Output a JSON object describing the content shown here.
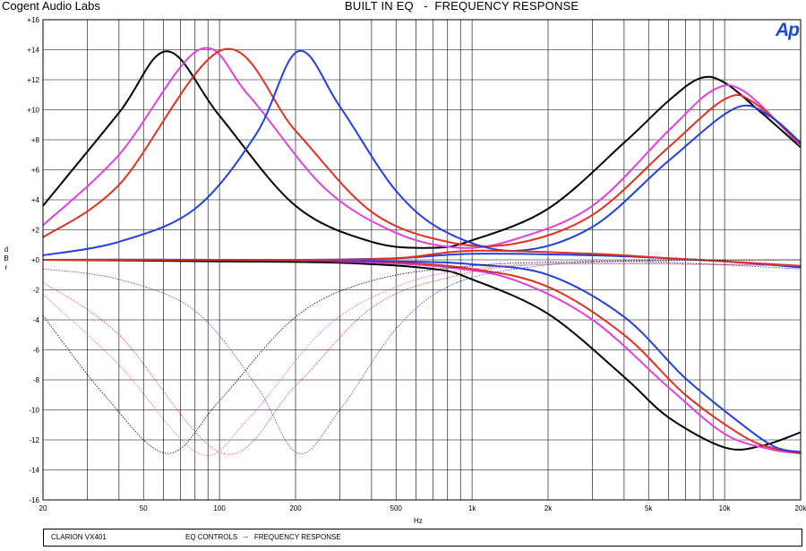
{
  "header": {
    "company": "Cogent Audio Labs",
    "title": "BUILT IN EQ   -  FREQUENCY RESPONSE",
    "logo_text": "Ap",
    "logo_color": "#1b4bd6"
  },
  "footer": {
    "model": "CLARION VX401",
    "description": "EQ CONTROLS   --   FREQUENCY RESPONSE"
  },
  "chart_data": {
    "type": "line",
    "xscale": "log",
    "xlim": [
      20,
      20000
    ],
    "ylim": [
      -16,
      16
    ],
    "grid": true,
    "xlabel": "Hz",
    "ylabel": "dBr",
    "y_ticks": [
      "+16",
      "+14",
      "+12",
      "+10",
      "+8",
      "+6",
      "+4",
      "+2",
      "+0",
      "-2",
      "-4",
      "-6",
      "-8",
      "-10",
      "-12",
      "-14",
      "-16"
    ],
    "x_ticks": [
      {
        "value": 20,
        "label": "20"
      },
      {
        "value": 50,
        "label": "50"
      },
      {
        "value": 100,
        "label": "100"
      },
      {
        "value": 200,
        "label": "200"
      },
      {
        "value": 500,
        "label": "500"
      },
      {
        "value": 1000,
        "label": "1k"
      },
      {
        "value": 2000,
        "label": "2k"
      },
      {
        "value": 5000,
        "label": "5k"
      },
      {
        "value": 10000,
        "label": "10k"
      },
      {
        "value": 20000,
        "label": "20k"
      }
    ],
    "series": [
      {
        "color": "#000000",
        "style": "solid",
        "x": [
          20,
          40,
          62,
          100,
          200,
          400,
          700,
          1000,
          2000,
          4000,
          6000,
          8000,
          10000,
          14000,
          20000
        ],
        "y": [
          3.6,
          9.8,
          13.9,
          9.6,
          3.6,
          1.2,
          0.8,
          1.3,
          3.4,
          7.8,
          10.6,
          12.1,
          11.8,
          9.8,
          7.5
        ]
      },
      {
        "color": "#e040e0",
        "style": "solid",
        "x": [
          20,
          40,
          83,
          130,
          260,
          500,
          900,
          1500,
          3000,
          6000,
          9000,
          12000,
          20000
        ],
        "y": [
          2.3,
          7.0,
          14.0,
          11.0,
          4.8,
          1.8,
          0.8,
          1.4,
          3.6,
          8.6,
          11.3,
          11.2,
          7.6
        ]
      },
      {
        "color": "#e03020",
        "style": "solid",
        "x": [
          20,
          40,
          103,
          200,
          400,
          800,
          1500,
          3000,
          6000,
          10000,
          13000,
          20000
        ],
        "y": [
          1.5,
          5.0,
          14.0,
          8.6,
          3.2,
          1.2,
          1.1,
          3.0,
          7.5,
          10.7,
          10.5,
          7.7
        ]
      },
      {
        "color": "#2040e0",
        "style": "solid",
        "x": [
          20,
          40,
          80,
          140,
          205,
          300,
          500,
          800,
          1500,
          3000,
          6000,
          11000,
          15000,
          20000
        ],
        "y": [
          0.3,
          1.2,
          3.4,
          8.4,
          13.9,
          10.2,
          4.6,
          1.8,
          0.6,
          2.2,
          6.6,
          10.1,
          9.6,
          7.8
        ]
      },
      {
        "color": "#000000",
        "style": "solid",
        "x": [
          20,
          100,
          300,
          700,
          1000,
          2000,
          4000,
          6000,
          10000,
          14000,
          20000
        ],
        "y": [
          0,
          -0.1,
          -0.2,
          -0.6,
          -1.3,
          -3.6,
          -7.8,
          -10.5,
          -12.5,
          -12.4,
          -11.5
        ]
      },
      {
        "color": "#e040e0",
        "style": "solid",
        "x": [
          20,
          100,
          300,
          800,
          1500,
          3000,
          6000,
          10000,
          15000,
          20000
        ],
        "y": [
          0,
          0,
          -0.1,
          -0.5,
          -1.4,
          -4.0,
          -8.5,
          -11.6,
          -12.6,
          -12.9
        ]
      },
      {
        "color": "#e03020",
        "style": "solid",
        "x": [
          20,
          100,
          400,
          1000,
          2000,
          4000,
          7000,
          12000,
          16000,
          20000
        ],
        "y": [
          0,
          0,
          -0.1,
          -0.6,
          -1.8,
          -5.0,
          -9.0,
          -11.8,
          -12.6,
          -12.9
        ]
      },
      {
        "color": "#2040e0",
        "style": "solid",
        "x": [
          20,
          100,
          500,
          1000,
          2000,
          4000,
          7000,
          12000,
          16000,
          20000
        ],
        "y": [
          0,
          0,
          -0.1,
          -0.3,
          -1.0,
          -3.8,
          -7.9,
          -11.1,
          -12.5,
          -12.8
        ]
      },
      {
        "color": "#2040e0",
        "style": "solid",
        "x": [
          20,
          200,
          500,
          1000,
          3000,
          6000,
          10000,
          20000
        ],
        "y": [
          0,
          0,
          0.1,
          0.4,
          0.3,
          0.1,
          -0.1,
          -0.5
        ]
      },
      {
        "color": "#e03020",
        "style": "solid",
        "x": [
          20,
          200,
          500,
          1000,
          3000,
          6000,
          10000,
          20000
        ],
        "y": [
          0,
          0,
          0.1,
          0.6,
          0.4,
          0.1,
          -0.1,
          -0.4
        ]
      },
      {
        "color": "#000000",
        "style": "dotted",
        "x": [
          20,
          35,
          62,
          100,
          200,
          400,
          1000,
          3000,
          20000
        ],
        "y": [
          -3.7,
          -9.0,
          -12.9,
          -9.4,
          -3.8,
          -1.4,
          -0.4,
          -0.1,
          0
        ]
      },
      {
        "color": "#e040e0",
        "style": "dotted",
        "x": [
          20,
          40,
          83,
          130,
          260,
          500,
          1000,
          3000,
          20000
        ],
        "y": [
          -2.3,
          -7.0,
          -12.9,
          -10.6,
          -4.6,
          -1.8,
          -0.6,
          -0.2,
          -0.4
        ]
      },
      {
        "color": "#e03020",
        "style": "dotted",
        "x": [
          20,
          40,
          103,
          200,
          400,
          800,
          2000,
          20000
        ],
        "y": [
          -1.5,
          -5.0,
          -12.9,
          -8.4,
          -3.2,
          -1.2,
          -0.3,
          -0.4
        ]
      },
      {
        "color": "#2040e0",
        "style": "dotted",
        "x": [
          20,
          40,
          80,
          140,
          205,
          300,
          500,
          800,
          1500,
          4000,
          20000
        ],
        "y": [
          -0.6,
          -1.3,
          -3.4,
          -8.4,
          -12.9,
          -10.0,
          -4.6,
          -1.8,
          -0.6,
          -0.1,
          -0.6
        ]
      }
    ]
  }
}
